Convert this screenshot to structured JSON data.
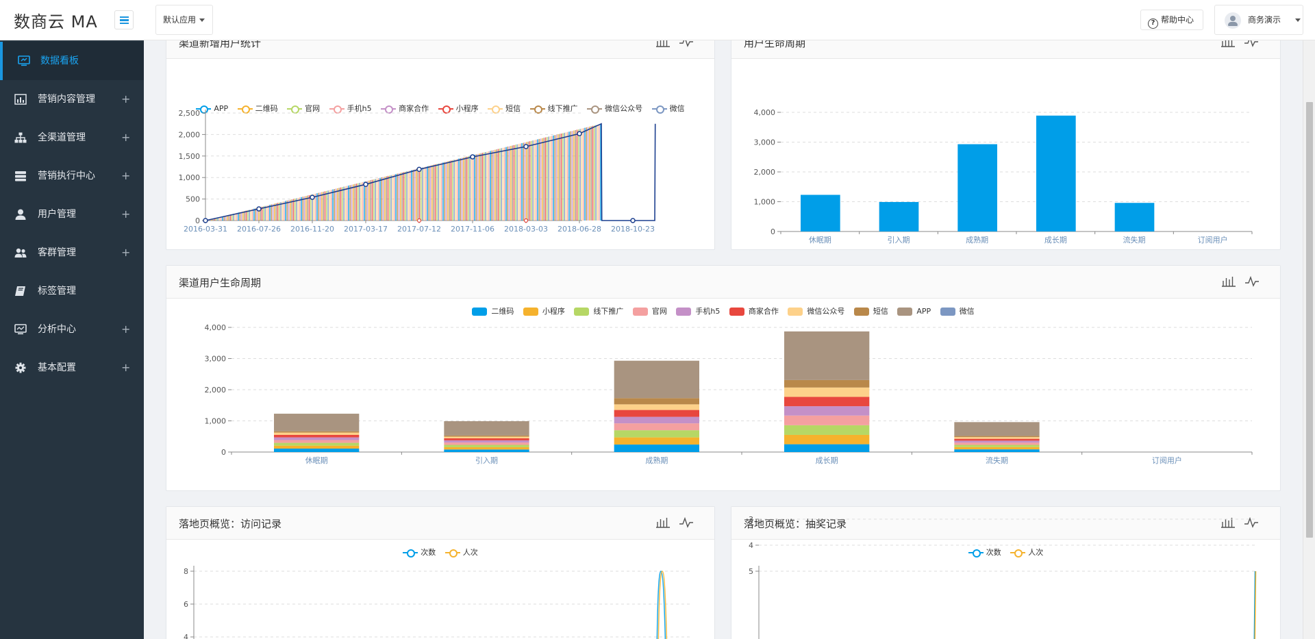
{
  "app": {
    "logo": "数商云 MA",
    "app_select": "默认应用",
    "help_label": "帮助中心",
    "user_name": "商务演示"
  },
  "sidebar": {
    "items": [
      {
        "label": "数据看板",
        "icon": "monitor-icon",
        "active": true
      },
      {
        "label": "营销内容管理",
        "icon": "bar-chart-icon",
        "expandable": "+"
      },
      {
        "label": "全渠道管理",
        "icon": "sitemap-icon",
        "expandable": "+"
      },
      {
        "label": "营销执行中心",
        "icon": "server-icon",
        "expandable": "+"
      },
      {
        "label": "用户管理",
        "icon": "user-icon",
        "expandable": "+"
      },
      {
        "label": "客群管理",
        "icon": "users-icon",
        "expandable": "+"
      },
      {
        "label": "标签管理",
        "icon": "book-icon"
      },
      {
        "label": "分析中心",
        "icon": "desktop-icon",
        "expandable": "+"
      },
      {
        "label": "基本配置",
        "icon": "gear-icon",
        "expandable": "+"
      }
    ]
  },
  "panels": {
    "new_users": {
      "title": "渠道新增用户统计"
    },
    "lifecycle": {
      "title": "用户生命周期"
    },
    "channel_lifecycle": {
      "title": "渠道用户生命周期"
    },
    "visits": {
      "title": "落地页概览：访问记录"
    },
    "lottery": {
      "title": "落地页概览：抽奖记录"
    }
  },
  "colors": {
    "primary": "#1a96e0",
    "bar_blue": "#009ee8",
    "sidebar_bg": "#263440"
  },
  "chart_data": [
    {
      "id": "new_users",
      "type": "line",
      "title": "渠道新增用户统计",
      "legend": [
        "APP",
        "二维码",
        "官网",
        "手机h5",
        "商家合作",
        "小程序",
        "短信",
        "线下推广",
        "微信公众号",
        "微信"
      ],
      "legend_colors": [
        "#009ee8",
        "#f5b22d",
        "#b6d765",
        "#f4a0a0",
        "#c490c7",
        "#e8473e",
        "#fdd18a",
        "#b9884a",
        "#a99480",
        "#7c97c2"
      ],
      "x_ticks": [
        "2016-03-31",
        "2016-07-26",
        "2016-11-20",
        "2017-03-17",
        "2017-07-12",
        "2017-11-06",
        "2018-03-03",
        "2018-06-28",
        "2018-10-23"
      ],
      "y_ticks": [
        "0",
        "500",
        "1,000",
        "1,500",
        "2,000",
        "2,500"
      ],
      "ylim": [
        0,
        2500
      ],
      "series": [
        {
          "name": "APP",
          "x": [
            "2016-03-31",
            "2016-07-26",
            "2016-11-20",
            "2017-03-17",
            "2017-07-12",
            "2017-11-06",
            "2018-03-03",
            "2018-06-28",
            "2018-08-15",
            "2018-08-16",
            "2018-10-23",
            "2018-12-10",
            "2018-12-11"
          ],
          "values": [
            0,
            270,
            540,
            840,
            1190,
            1480,
            1720,
            2020,
            2250,
            0,
            0,
            0,
            2250
          ]
        }
      ]
    },
    {
      "id": "lifecycle",
      "type": "bar",
      "title": "用户生命周期",
      "categories": [
        "休眠期",
        "引入期",
        "成熟期",
        "成长期",
        "流失期",
        "订阅用户"
      ],
      "values": [
        1230,
        990,
        2930,
        3890,
        960,
        0
      ],
      "y_ticks": [
        "0",
        "1,000",
        "2,000",
        "3,000",
        "4,000"
      ],
      "ylim": [
        0,
        4000
      ]
    },
    {
      "id": "channel_lifecycle",
      "type": "bar",
      "title": "渠道用户生命周期",
      "stacked": true,
      "categories": [
        "休眠期",
        "引入期",
        "成熟期",
        "成长期",
        "流失期",
        "订阅用户"
      ],
      "y_ticks": [
        "0",
        "1,000",
        "2,000",
        "3,000",
        "4,000"
      ],
      "ylim": [
        0,
        4000
      ],
      "series": [
        {
          "name": "二维码",
          "color": "#009ee8",
          "values": [
            110,
            80,
            240,
            250,
            85,
            0
          ]
        },
        {
          "name": "小程序",
          "color": "#f5b22d",
          "values": [
            95,
            75,
            230,
            300,
            75,
            0
          ]
        },
        {
          "name": "线下推广",
          "color": "#b6d765",
          "values": [
            90,
            75,
            230,
            310,
            70,
            0
          ]
        },
        {
          "name": "官网",
          "color": "#f4a0a0",
          "values": [
            90,
            75,
            220,
            310,
            70,
            0
          ]
        },
        {
          "name": "手机h5",
          "color": "#c490c7",
          "values": [
            85,
            70,
            210,
            300,
            65,
            0
          ]
        },
        {
          "name": "商家合作",
          "color": "#e8473e",
          "values": [
            80,
            65,
            220,
            300,
            60,
            0
          ]
        },
        {
          "name": "微信公众号",
          "color": "#fdd18a",
          "values": [
            75,
            55,
            180,
            300,
            55,
            0
          ]
        },
        {
          "name": "短信",
          "color": "#b9884a",
          "values": [
            40,
            35,
            200,
            240,
            35,
            0
          ]
        },
        {
          "name": "APP",
          "color": "#a99480",
          "values": [
            565,
            460,
            1200,
            1560,
            445,
            0
          ]
        },
        {
          "name": "微信",
          "color": "#7c97c2",
          "values": [
            0,
            0,
            0,
            0,
            0,
            0
          ]
        }
      ]
    },
    {
      "id": "visits",
      "type": "line",
      "title": "落地页概览：访问记录",
      "legend": [
        "次数",
        "人次"
      ],
      "legend_colors": [
        "#009ee8",
        "#f5b22d"
      ],
      "y_ticks": [
        "4",
        "6",
        "8"
      ],
      "note": "y axis partially visible; spike reaching 8 near right end",
      "series": [
        {
          "name": "次数",
          "values": [
            0,
            0,
            8,
            0
          ]
        },
        {
          "name": "人次",
          "values": [
            0,
            0,
            8,
            0
          ]
        }
      ]
    },
    {
      "id": "lottery",
      "type": "line",
      "title": "落地页概览：抽奖记录",
      "legend": [
        "次数",
        "人次"
      ],
      "legend_colors": [
        "#009ee8",
        "#f5b22d"
      ],
      "y_ticks": [
        "3",
        "4",
        "5"
      ],
      "series": [
        {
          "name": "次数",
          "values": [
            0,
            5
          ]
        },
        {
          "name": "人次",
          "values": [
            0,
            5
          ]
        }
      ]
    }
  ]
}
